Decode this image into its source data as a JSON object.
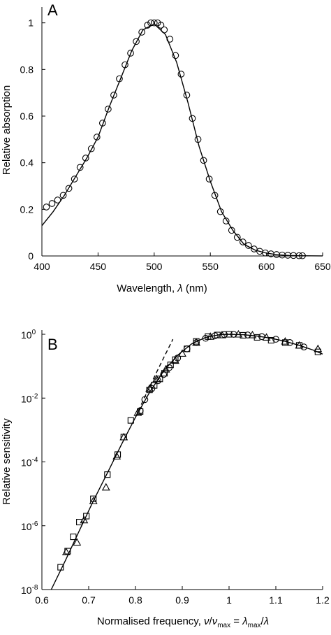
{
  "chart_data": [
    {
      "type": "line",
      "panel": "A",
      "xlabel": "Wavelength, λ (nm)",
      "xlabel_parts": [
        "Wavelength, ",
        "λ",
        " (nm)"
      ],
      "ylabel": "Relative absorption",
      "xlim": [
        400,
        650
      ],
      "ylim": [
        0,
        1.05
      ],
      "x_ticks": [
        400,
        450,
        500,
        550,
        600,
        650
      ],
      "y_ticks": [
        0,
        0.2,
        0.4,
        0.6,
        0.8,
        1
      ],
      "x_tick_labels": [
        "400",
        "450",
        "500",
        "550",
        "600",
        "650"
      ],
      "y_tick_labels": [
        "0",
        "0.2",
        "0.4",
        "0.6",
        "0.8",
        "1"
      ],
      "series": [
        {
          "kind": "scatter",
          "marker": "circle",
          "x": [
            404,
            409,
            414,
            419,
            424,
            429,
            434,
            439,
            444,
            449,
            454,
            459,
            464,
            469,
            474,
            479,
            484,
            489,
            494,
            497,
            500,
            503,
            506,
            509,
            514,
            519,
            524,
            529,
            534,
            539,
            544,
            549,
            554,
            559,
            564,
            569,
            574,
            579,
            584,
            589,
            594,
            599,
            604,
            609,
            614,
            619,
            624,
            629,
            632
          ],
          "y": [
            0.21,
            0.225,
            0.24,
            0.26,
            0.29,
            0.33,
            0.38,
            0.42,
            0.46,
            0.51,
            0.57,
            0.63,
            0.69,
            0.76,
            0.82,
            0.87,
            0.92,
            0.96,
            0.99,
            1.0,
            1.0,
            1.0,
            0.99,
            0.97,
            0.93,
            0.86,
            0.78,
            0.69,
            0.59,
            0.5,
            0.41,
            0.33,
            0.26,
            0.19,
            0.15,
            0.11,
            0.08,
            0.06,
            0.045,
            0.03,
            0.02,
            0.013,
            0.009,
            0.006,
            0.004,
            0.003,
            0.002,
            0.001,
            0.001
          ]
        },
        {
          "kind": "line",
          "style": "solid",
          "x": [
            400,
            410,
            420,
            430,
            440,
            450,
            460,
            470,
            480,
            490,
            500,
            510,
            520,
            530,
            540,
            550,
            560,
            570,
            580,
            590,
            600,
            610,
            620,
            630,
            640,
            650
          ],
          "y": [
            0.13,
            0.19,
            0.26,
            0.34,
            0.42,
            0.51,
            0.64,
            0.76,
            0.88,
            0.97,
            0.995,
            0.95,
            0.83,
            0.66,
            0.47,
            0.32,
            0.19,
            0.11,
            0.05,
            0.025,
            0.012,
            0.005,
            0.002,
            0.001,
            0.0005,
            0.0002
          ]
        }
      ]
    },
    {
      "type": "line",
      "panel": "B",
      "xlabel": "Normalised frequency, ν/ν_max = λ_max/λ",
      "xlabel_parts": [
        "Normalised frequency,  ",
        "ν",
        "/",
        "ν",
        "max",
        " = ",
        "λ",
        "max",
        "/",
        "λ"
      ],
      "ylabel": "Relative sensitivity",
      "y_scale": "log",
      "xlim": [
        0.6,
        1.2
      ],
      "ylim": [
        1e-08,
        1
      ],
      "x_ticks": [
        0.6,
        0.7,
        0.8,
        0.9,
        1.0,
        1.1,
        1.2
      ],
      "x_tick_labels": [
        "0.6",
        "0.7",
        "0.8",
        "0.9",
        "1",
        "1.1",
        "1.2"
      ],
      "y_ticks": [
        1e-08,
        1e-06,
        0.0001,
        0.01,
        1
      ],
      "y_tick_labels": [
        {
          "base": "10",
          "exp": "-8"
        },
        {
          "base": "10",
          "exp": "-6"
        },
        {
          "base": "10",
          "exp": "-4"
        },
        {
          "base": "10",
          "exp": "-2"
        },
        {
          "base": "10",
          "exp": "0"
        }
      ],
      "series": [
        {
          "kind": "scatter",
          "marker": "square",
          "x": [
            0.64,
            0.655,
            0.667,
            0.68,
            0.695,
            0.71,
            0.74,
            0.762,
            0.775,
            0.79,
            0.81,
            0.83,
            0.84,
            0.852,
            0.862,
            0.875,
            0.885,
            0.91,
            0.93,
            0.955,
            0.975,
            1.0,
            1.03,
            1.06,
            1.09,
            1.12,
            1.15,
            1.19
          ],
          "y": [
            5e-08,
            1.6e-07,
            4.5e-07,
            1.3e-06,
            2e-06,
            7e-06,
            4e-05,
            0.00017,
            0.0006,
            0.002,
            0.0038,
            0.018,
            0.025,
            0.04,
            0.06,
            0.11,
            0.16,
            0.35,
            0.6,
            0.85,
            0.95,
            1.0,
            0.93,
            0.8,
            0.65,
            0.55,
            0.45,
            0.28
          ]
        },
        {
          "kind": "scatter",
          "marker": "triangle",
          "x": [
            0.652,
            0.675,
            0.69,
            0.71,
            0.737,
            0.76,
            0.775,
            0.805,
            0.83,
            0.845,
            0.865,
            0.885,
            0.9,
            0.93,
            0.96,
            0.985,
            1.02,
            1.05,
            1.08,
            1.12,
            1.15,
            1.19
          ],
          "y": [
            1.5e-07,
            3e-07,
            1.5e-06,
            6e-06,
            1.6e-05,
            0.00015,
            0.0006,
            0.0035,
            0.02,
            0.04,
            0.08,
            0.15,
            0.25,
            0.55,
            0.85,
            0.95,
            1.0,
            0.95,
            0.8,
            0.6,
            0.45,
            0.35
          ]
        },
        {
          "kind": "scatter",
          "marker": "circle",
          "x": [
            0.81,
            0.82,
            0.835,
            0.848,
            0.86,
            0.872,
            0.89,
            0.91,
            0.93,
            0.95,
            0.97,
            0.99,
            1.01,
            1.04,
            1.07,
            1.1,
            1.13,
            1.16
          ],
          "y": [
            0.004,
            0.009,
            0.02,
            0.035,
            0.055,
            0.09,
            0.18,
            0.35,
            0.55,
            0.75,
            0.9,
            0.98,
            1.0,
            0.95,
            0.85,
            0.7,
            0.55,
            0.4
          ]
        },
        {
          "kind": "line",
          "style": "solid",
          "x": [
            0.62,
            0.65,
            0.68,
            0.71,
            0.74,
            0.77,
            0.8,
            0.83,
            0.86,
            0.89,
            0.92,
            0.95,
            0.98,
            1.0,
            1.03,
            1.06,
            1.09,
            1.12,
            1.15,
            1.18,
            1.2
          ],
          "y": [
            1e-08,
            8e-08,
            7e-07,
            6e-06,
            4.5e-05,
            0.00035,
            0.0025,
            0.015,
            0.07,
            0.22,
            0.5,
            0.8,
            0.97,
            1.0,
            0.97,
            0.88,
            0.75,
            0.6,
            0.45,
            0.32,
            0.24
          ]
        },
        {
          "kind": "line",
          "style": "dashed",
          "x": [
            0.8,
            0.82,
            0.84,
            0.86,
            0.88
          ],
          "y": [
            0.0025,
            0.011,
            0.045,
            0.18,
            0.7
          ]
        }
      ]
    }
  ]
}
